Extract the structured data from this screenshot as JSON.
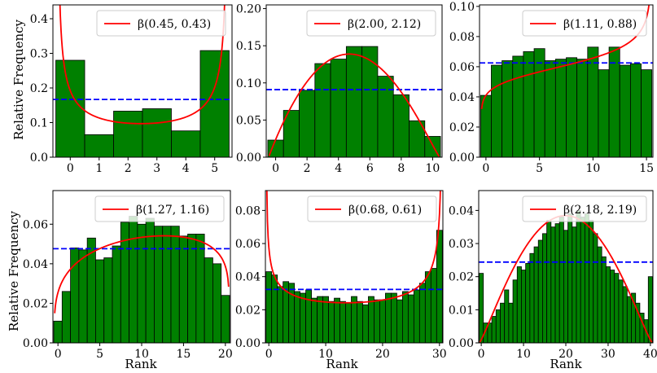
{
  "figure": {
    "x_label": "Rank",
    "y_label": "Relative Frequency"
  },
  "colors": {
    "bar": "#008000",
    "bar_edge": "#000000",
    "fit": "#ff0000",
    "uniform": "#0000ff"
  },
  "chart_data": [
    {
      "type": "bar",
      "legend": "β(0.45, 0.43)",
      "alpha": 0.45,
      "beta": 0.43,
      "xlim": [
        -0.6,
        5.6
      ],
      "ylim": [
        0,
        0.44
      ],
      "xticks": [
        0,
        1,
        2,
        3,
        4,
        5
      ],
      "yticks": [
        0.0,
        0.1,
        0.2,
        0.3,
        0.4
      ],
      "ytick_labels": [
        "0.0",
        "0.1",
        "0.2",
        "0.3",
        "0.4"
      ],
      "categories": [
        0,
        1,
        2,
        3,
        4,
        5
      ],
      "values": [
        0.28,
        0.065,
        0.133,
        0.14,
        0.076,
        0.308
      ],
      "uniform": 0.1667,
      "xlabel": "",
      "ylabel": "Relative Frequency"
    },
    {
      "type": "bar",
      "legend": "β(2.00, 2.12)",
      "alpha": 2.0,
      "beta": 2.12,
      "xlim": [
        -0.6,
        10.6
      ],
      "ylim": [
        0,
        0.205
      ],
      "xticks": [
        0,
        2,
        4,
        6,
        8,
        10
      ],
      "yticks": [
        0.0,
        0.05,
        0.1,
        0.15,
        0.2
      ],
      "ytick_labels": [
        "0.00",
        "0.05",
        "0.10",
        "0.15",
        "0.20"
      ],
      "categories": [
        0,
        1,
        2,
        3,
        4,
        5,
        6,
        7,
        8,
        9,
        10
      ],
      "values": [
        0.023,
        0.063,
        0.09,
        0.126,
        0.132,
        0.149,
        0.149,
        0.109,
        0.084,
        0.049,
        0.028
      ],
      "uniform": 0.0909,
      "xlabel": "",
      "ylabel": ""
    },
    {
      "type": "bar",
      "legend": "β(1.11, 0.88)",
      "alpha": 1.11,
      "beta": 0.88,
      "xlim": [
        -0.6,
        15.6
      ],
      "ylim": [
        0,
        0.101
      ],
      "xticks": [
        0,
        5,
        10,
        15
      ],
      "yticks": [
        0.0,
        0.02,
        0.04,
        0.06,
        0.08,
        0.1
      ],
      "ytick_labels": [
        "0.00",
        "0.02",
        "0.04",
        "0.06",
        "0.08",
        "0.10"
      ],
      "categories": [
        0,
        1,
        2,
        3,
        4,
        5,
        6,
        7,
        8,
        9,
        10,
        11,
        12,
        13,
        14,
        15
      ],
      "values": [
        0.041,
        0.061,
        0.064,
        0.067,
        0.07,
        0.072,
        0.064,
        0.065,
        0.066,
        0.065,
        0.073,
        0.058,
        0.073,
        0.061,
        0.062,
        0.058
      ],
      "uniform": 0.0625,
      "xlabel": "",
      "ylabel": ""
    },
    {
      "type": "bar",
      "legend": "β(1.27, 1.16)",
      "alpha": 1.27,
      "beta": 1.16,
      "xlim": [
        -0.6,
        20.6
      ],
      "ylim": [
        0,
        0.077
      ],
      "xticks": [
        0,
        5,
        10,
        15,
        20
      ],
      "yticks": [
        0.0,
        0.02,
        0.04,
        0.06
      ],
      "ytick_labels": [
        "0.00",
        "0.02",
        "0.04",
        "0.06"
      ],
      "categories": [
        0,
        1,
        2,
        3,
        4,
        5,
        6,
        7,
        8,
        9,
        10,
        11,
        12,
        13,
        14,
        15,
        16,
        17,
        18,
        19,
        20
      ],
      "values": [
        0.011,
        0.026,
        0.048,
        0.047,
        0.053,
        0.042,
        0.043,
        0.049,
        0.061,
        0.064,
        0.06,
        0.063,
        0.059,
        0.059,
        0.059,
        0.054,
        0.055,
        0.055,
        0.043,
        0.04,
        0.024
      ],
      "uniform": 0.0476,
      "xlabel": "Rank",
      "ylabel": "Relative Frequency"
    },
    {
      "type": "bar",
      "legend": "β(0.68, 0.61)",
      "alpha": 0.68,
      "beta": 0.61,
      "xlim": [
        -0.6,
        30.6
      ],
      "ylim": [
        0,
        0.092
      ],
      "xticks": [
        0,
        10,
        20,
        30
      ],
      "yticks": [
        0.0,
        0.02,
        0.04,
        0.06,
        0.08
      ],
      "ytick_labels": [
        "0.00",
        "0.02",
        "0.04",
        "0.06",
        "0.08"
      ],
      "categories": [
        0,
        1,
        2,
        3,
        4,
        5,
        6,
        7,
        8,
        9,
        10,
        11,
        12,
        13,
        14,
        15,
        16,
        17,
        18,
        19,
        20,
        21,
        22,
        23,
        24,
        25,
        26,
        27,
        28,
        29,
        30
      ],
      "values": [
        0.043,
        0.041,
        0.034,
        0.037,
        0.036,
        0.031,
        0.03,
        0.032,
        0.027,
        0.028,
        0.028,
        0.025,
        0.027,
        0.025,
        0.024,
        0.028,
        0.025,
        0.023,
        0.028,
        0.026,
        0.026,
        0.03,
        0.03,
        0.026,
        0.031,
        0.029,
        0.032,
        0.036,
        0.043,
        0.045,
        0.068
      ],
      "uniform": 0.0323,
      "xlabel": "Rank",
      "ylabel": ""
    },
    {
      "type": "bar",
      "legend": "β(2.18, 2.19)",
      "alpha": 2.18,
      "beta": 2.19,
      "xlim": [
        -0.6,
        40.6
      ],
      "ylim": [
        0,
        0.046
      ],
      "xticks": [
        0,
        10,
        20,
        30,
        40
      ],
      "yticks": [
        0.0,
        0.01,
        0.02,
        0.03,
        0.04
      ],
      "ytick_labels": [
        "0.00",
        "0.01",
        "0.02",
        "0.03",
        "0.04"
      ],
      "categories": [
        0,
        1,
        2,
        3,
        4,
        5,
        6,
        7,
        8,
        9,
        10,
        11,
        12,
        13,
        14,
        15,
        16,
        17,
        18,
        19,
        20,
        21,
        22,
        23,
        24,
        25,
        26,
        27,
        28,
        29,
        30,
        31,
        32,
        33,
        34,
        35,
        36,
        37,
        38,
        39,
        40
      ],
      "values": [
        0.021,
        0.006,
        0.006,
        0.008,
        0.01,
        0.012,
        0.016,
        0.012,
        0.019,
        0.023,
        0.022,
        0.024,
        0.027,
        0.029,
        0.031,
        0.033,
        0.037,
        0.035,
        0.036,
        0.038,
        0.034,
        0.039,
        0.035,
        0.04,
        0.038,
        0.039,
        0.037,
        0.033,
        0.029,
        0.026,
        0.023,
        0.022,
        0.021,
        0.019,
        0.017,
        0.014,
        0.015,
        0.012,
        0.009,
        0.007,
        0.02
      ],
      "uniform": 0.0244,
      "xlabel": "Rank",
      "ylabel": ""
    }
  ]
}
